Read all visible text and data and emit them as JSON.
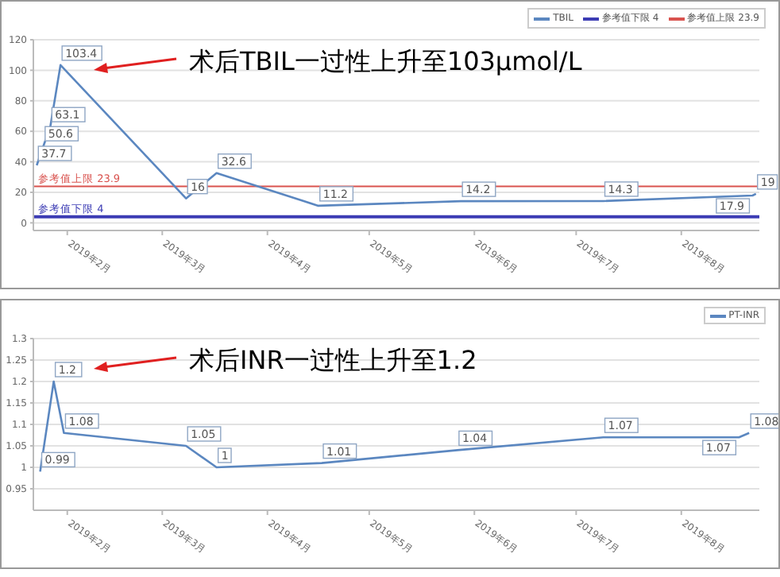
{
  "chart_data": [
    {
      "type": "line",
      "x": [
        "2019-01-23",
        "2019-01-25",
        "2019-01-27",
        "2019-01-30",
        "2019-03-08",
        "2019-03-17",
        "2019-04-16",
        "2019-05-28",
        "2019-07-09",
        "2019-08-22",
        "2019-08-23"
      ],
      "series": [
        {
          "name": "TBIL",
          "color": "#5b87c0",
          "values": [
            37.7,
            50.6,
            63.1,
            103.4,
            16,
            32.6,
            11.2,
            14.2,
            14.3,
            17.9,
            19
          ]
        }
      ],
      "ref_lines": [
        {
          "axis": "y",
          "value": 4,
          "label": "参考值下限 4",
          "color": "#3c3cb4"
        },
        {
          "axis": "y",
          "value": 23.9,
          "label": "参考值上限 23.9",
          "color": "#d9534f"
        }
      ],
      "xlim": [
        "2019-01-22",
        "2019-08-24"
      ],
      "xticks": [
        {
          "value": "2019-02-01",
          "label": "2019年2月"
        },
        {
          "value": "2019-03-01",
          "label": "2019年3月"
        },
        {
          "value": "2019-04-01",
          "label": "2019年4月"
        },
        {
          "value": "2019-05-01",
          "label": "2019年5月"
        },
        {
          "value": "2019-06-01",
          "label": "2019年6月"
        },
        {
          "value": "2019-07-01",
          "label": "2019年7月"
        },
        {
          "value": "2019-08-01",
          "label": "2019年8月"
        }
      ],
      "ylim": [
        -5,
        120
      ],
      "yticks": [
        0,
        20,
        40,
        60,
        80,
        100,
        120
      ],
      "grid": "y",
      "legend": "top right",
      "marker": "none",
      "data_labels": true,
      "annotations": [
        "术后TBIL一过性上升至103μmol/L"
      ]
    },
    {
      "type": "line",
      "x": [
        "2019-01-24",
        "2019-01-28",
        "2019-01-31",
        "2019-03-08",
        "2019-03-17",
        "2019-04-17",
        "2019-05-27",
        "2019-07-09",
        "2019-08-18",
        "2019-08-21"
      ],
      "series": [
        {
          "name": "PT-INR",
          "color": "#5b87c0",
          "values": [
            0.99,
            1.2,
            1.08,
            1.05,
            1,
            1.01,
            1.04,
            1.07,
            1.07,
            1.08
          ]
        }
      ],
      "xlim": [
        "2019-01-22",
        "2019-08-24"
      ],
      "xticks": [
        {
          "value": "2019-02-01",
          "label": "2019年2月"
        },
        {
          "value": "2019-03-01",
          "label": "2019年3月"
        },
        {
          "value": "2019-04-01",
          "label": "2019年4月"
        },
        {
          "value": "2019-05-01",
          "label": "2019年5月"
        },
        {
          "value": "2019-06-01",
          "label": "2019年6月"
        },
        {
          "value": "2019-07-01",
          "label": "2019年7月"
        },
        {
          "value": "2019-08-01",
          "label": "2019年8月"
        }
      ],
      "ylim": [
        0.9,
        1.3
      ],
      "yticks": [
        0.95,
        1,
        1.05,
        1.1,
        1.15,
        1.2,
        1.25,
        1.3
      ],
      "grid": "y",
      "legend": "top right",
      "marker": "none",
      "data_labels": true,
      "annotations": [
        "术后INR一过性上升至1.2"
      ]
    }
  ]
}
